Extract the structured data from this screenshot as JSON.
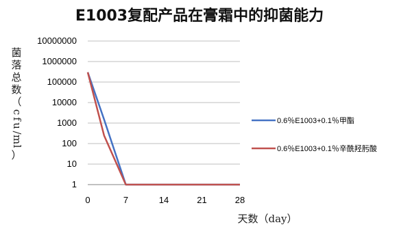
{
  "chart_data": {
    "type": "line",
    "title": "E1003复配产品在膏霜中的抑菌能力",
    "xlabel": "天数（day）",
    "ylabel": "菌落总数（cfu/ml）",
    "x": [
      0,
      3,
      7,
      14,
      21,
      28
    ],
    "xticks": [
      "0",
      "7",
      "14",
      "21",
      "28"
    ],
    "xlim": [
      0,
      28
    ],
    "yscale": "log",
    "ylim": [
      1,
      10000000
    ],
    "yticks": [
      "1",
      "10",
      "100",
      "1000",
      "10000",
      "100000",
      "1000000",
      "10000000"
    ],
    "grid": "horizontal",
    "legend_position": "right",
    "series": [
      {
        "name": "0.6％E1003+0.1％甲酯",
        "color": "#4472C4",
        "values": [
          300000,
          1500,
          1,
          1,
          1,
          1
        ]
      },
      {
        "name": "0.6％E1003+0.1％辛酰羟肟酸",
        "color": "#C0504D",
        "values": [
          300000,
          250,
          1,
          1,
          1,
          1
        ]
      }
    ]
  }
}
